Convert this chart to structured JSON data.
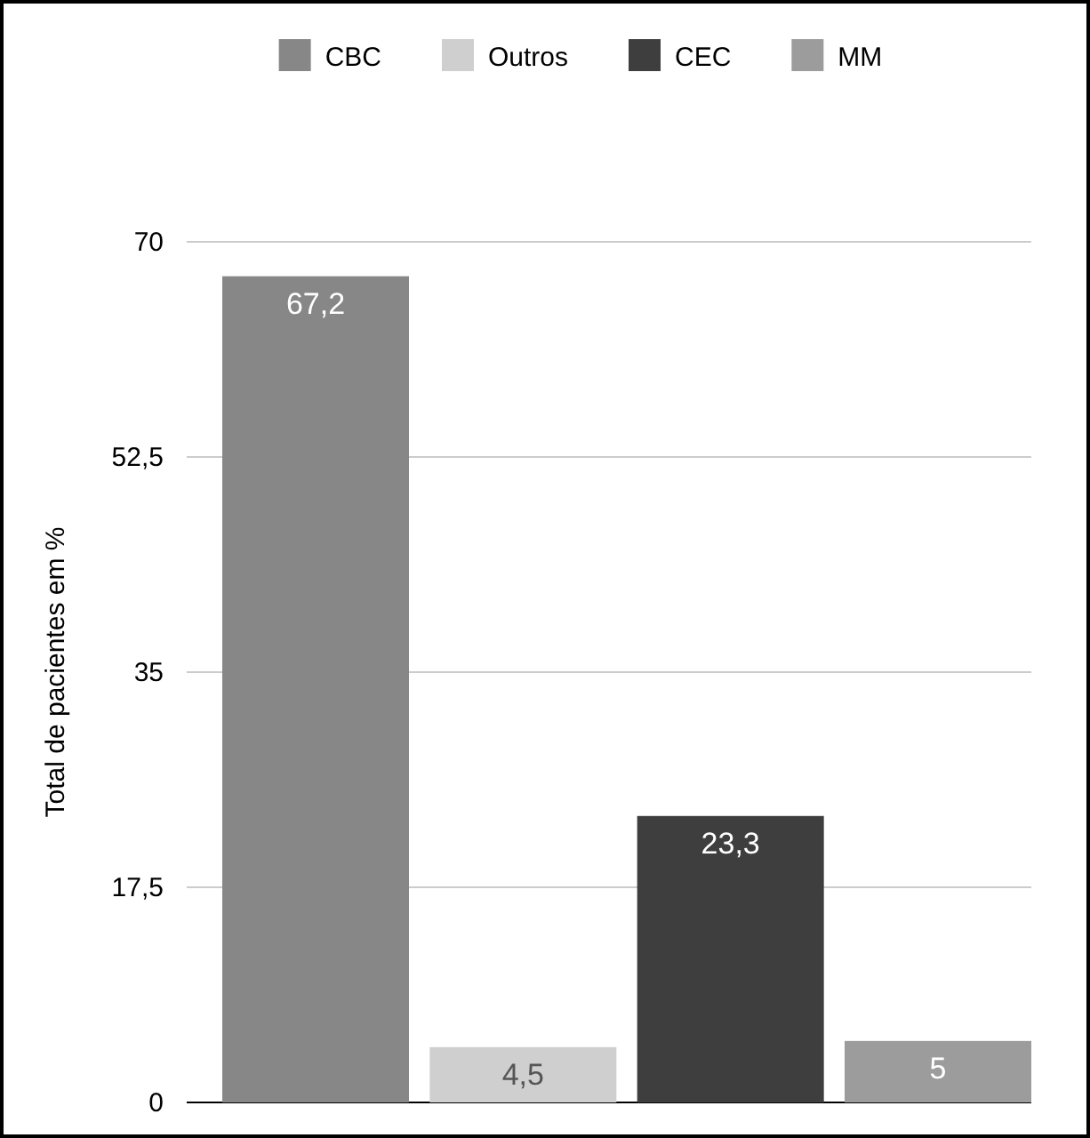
{
  "chart_data": {
    "type": "bar",
    "ylabel": "Total de pacientes em %",
    "categories": [
      null
    ],
    "series": [
      {
        "name": "CBC",
        "color": "#878787",
        "values": [
          67.2
        ],
        "value_labels": [
          "67,2"
        ]
      },
      {
        "name": "Outros",
        "color": "#cfcfcf",
        "values": [
          4.5
        ],
        "value_labels": [
          "4,5"
        ]
      },
      {
        "name": "CEC",
        "color": "#3e3e3e",
        "values": [
          23.3
        ],
        "value_labels": [
          "23,3"
        ]
      },
      {
        "name": "MM",
        "color": "#9c9c9c",
        "values": [
          5
        ],
        "value_labels": [
          "5"
        ]
      }
    ],
    "ylim": [
      0,
      70
    ],
    "yticks": [
      0,
      {
        "value": 17.5,
        "label": "17,5"
      },
      35,
      {
        "value": 52.5,
        "label": "52,5"
      },
      70
    ],
    "grid": "y",
    "legend": "top"
  }
}
